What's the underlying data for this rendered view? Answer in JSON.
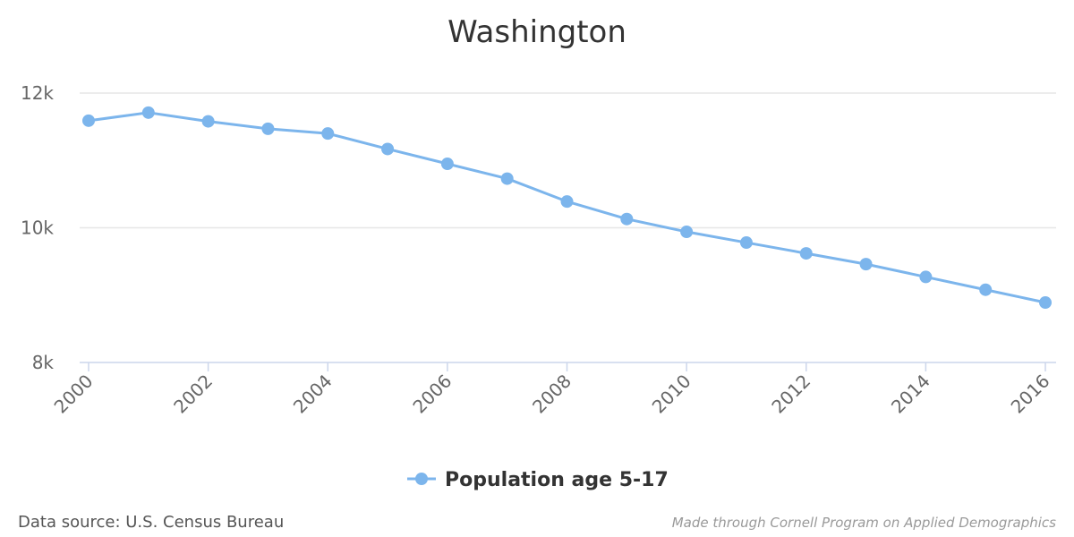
{
  "chart_data": {
    "type": "line",
    "title": "Washington",
    "xlabel": "",
    "ylabel": "",
    "x": [
      2000,
      2001,
      2002,
      2003,
      2004,
      2005,
      2006,
      2007,
      2008,
      2009,
      2010,
      2011,
      2012,
      2013,
      2014,
      2015,
      2016
    ],
    "series": [
      {
        "name": "Population age 5-17",
        "color": "#7cb5ec",
        "values": [
          11590,
          11710,
          11580,
          11470,
          11400,
          11170,
          10950,
          10730,
          10390,
          10130,
          9940,
          9780,
          9620,
          9460,
          9270,
          9080,
          8890
        ]
      }
    ],
    "ylim": [
      8000,
      12000
    ],
    "yticks": [
      8000,
      10000,
      12000
    ],
    "ytick_labels": [
      "8k",
      "10k",
      "12k"
    ],
    "xticks": [
      2000,
      2002,
      2004,
      2006,
      2008,
      2010,
      2012,
      2014,
      2016
    ],
    "xtick_labels": [
      "2000",
      "2002",
      "2004",
      "2006",
      "2008",
      "2010",
      "2012",
      "2014",
      "2016"
    ],
    "grid": true,
    "legend_position": "bottom-center"
  },
  "footer": {
    "source": "Data source: U.S. Census Bureau",
    "credit": "Made through Cornell Program on Applied Demographics"
  }
}
